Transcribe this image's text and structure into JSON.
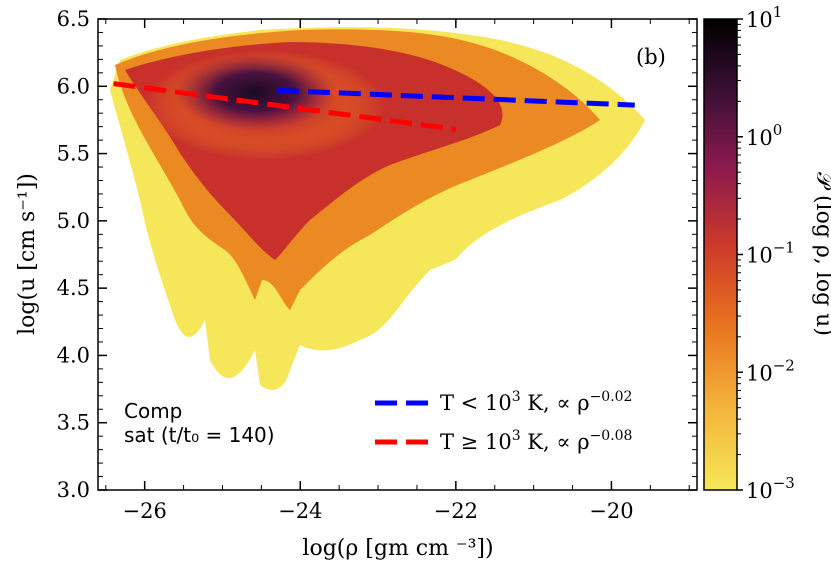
{
  "chart_data": {
    "type": "heatmap",
    "panel_label": "(b)",
    "xlabel": "log(ρ [gm cm ⁻³])",
    "ylabel": "log(u [cm s⁻¹])",
    "xlim": [
      -26.6,
      -18.9
    ],
    "ylim": [
      3.0,
      6.5
    ],
    "x_ticks": [
      -26,
      -24,
      -22,
      -20
    ],
    "x_tick_labels": [
      "−26",
      "−24",
      "−22",
      "−20"
    ],
    "y_ticks": [
      3.0,
      3.5,
      4.0,
      4.5,
      5.0,
      5.5,
      6.0,
      6.5
    ],
    "y_tick_labels": [
      "3.0",
      "3.5",
      "4.0",
      "4.5",
      "5.0",
      "5.5",
      "6.0",
      "6.5"
    ],
    "colorbar": {
      "label": "𝒫 (log ρ, log u)",
      "scale": "log",
      "range": [
        0.001,
        10
      ],
      "ticks": [
        0.001,
        0.01,
        0.1,
        1,
        10
      ],
      "tick_labels": [
        {
          "base": "10",
          "exp": "−3"
        },
        {
          "base": "10",
          "exp": "−2"
        },
        {
          "base": "10",
          "exp": "−1"
        },
        {
          "base": "10",
          "exp": "0"
        },
        {
          "base": "10",
          "exp": "1"
        }
      ],
      "colors": [
        "#f6e75a",
        "#f3a32b",
        "#e55a1e",
        "#b51f3c",
        "#6a1653",
        "#2a0d2e",
        "#000000"
      ]
    },
    "series": [
      {
        "name": "T < 10³ K,  ∝ ρ^−0.02",
        "color": "#0000ff",
        "style": "dashed",
        "x": [
          -24.3,
          -19.7
        ],
        "y": [
          5.97,
          5.86
        ]
      },
      {
        "name": "T ≥ 10³ K,  ∝ ρ^−0.08",
        "color": "#ff0000",
        "style": "dashed",
        "x": [
          -26.4,
          -22.0
        ],
        "y": [
          6.02,
          5.68
        ]
      }
    ],
    "legend": {
      "position": "bottom-right",
      "entries": [
        {
          "label_main": "T < 10",
          "label_sup": "3",
          "label_rest": " K,  ∝ ρ",
          "label_exp": "−0.02",
          "color": "#0000ff"
        },
        {
          "label_main": "T ≥ 10",
          "label_sup": "3",
          "label_rest": " K,  ∝ ρ",
          "label_exp": "−0.08",
          "color": "#ff0000"
        }
      ]
    },
    "annotation": {
      "line1": "Comp",
      "line2": "sat (t/t₀ = 140)"
    }
  }
}
